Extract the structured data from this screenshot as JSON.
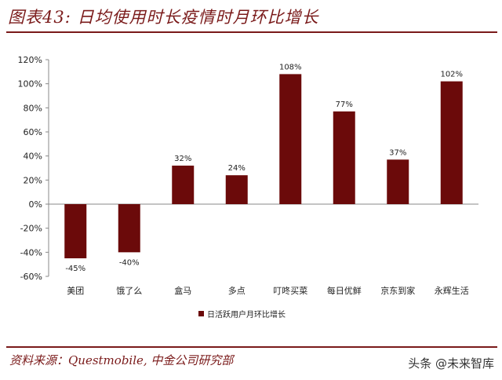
{
  "title": "图表43:  日均使用时长疫情时月环比增长",
  "source": "资料来源：Questmobile,  中金公司研究部",
  "watermark": "头条 @未来智库",
  "colors": {
    "bar": "#6b0a0a",
    "accent": "#7a1a1a"
  },
  "chart_data": {
    "type": "bar",
    "categories": [
      "美团",
      "饿了么",
      "盒马",
      "多点",
      "叮咚买菜",
      "每日优鲜",
      "京东到家",
      "永辉生活"
    ],
    "series": [
      {
        "name": "日活跃用户月环比增长",
        "values": [
          -45,
          -40,
          32,
          24,
          108,
          77,
          37,
          102
        ]
      }
    ],
    "data_labels": [
      "-45%",
      "-40%",
      "32%",
      "24%",
      "108%",
      "77%",
      "37%",
      "102%"
    ],
    "yticks": [
      "120%",
      "100%",
      "80%",
      "60%",
      "40%",
      "20%",
      "0%",
      "-20%",
      "-40%",
      "-60%"
    ],
    "ylim": [
      -60,
      120
    ],
    "grid": false,
    "legend": "bottom"
  }
}
